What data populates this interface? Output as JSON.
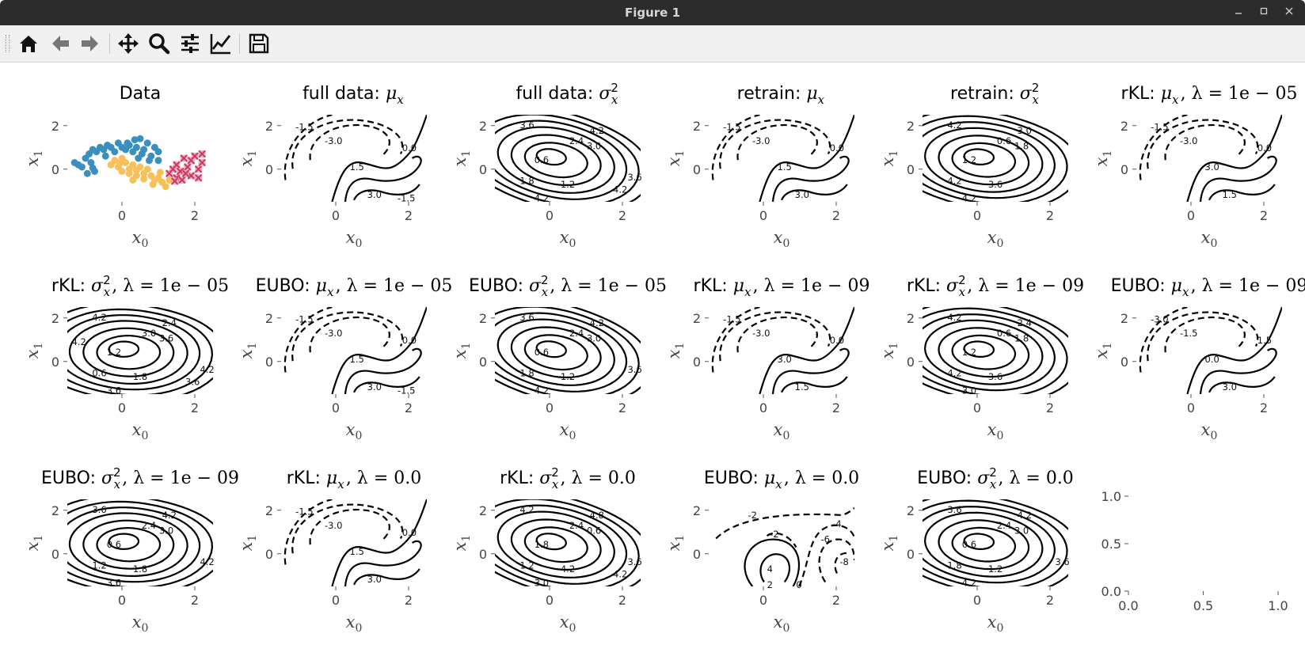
{
  "window": {
    "title": "Figure 1",
    "controls": [
      "minimize",
      "maximize",
      "close"
    ]
  },
  "toolbar": {
    "buttons": [
      {
        "name": "home-button",
        "icon": "home-icon"
      },
      {
        "name": "back-button",
        "icon": "arrow-left-icon"
      },
      {
        "name": "forward-button",
        "icon": "arrow-right-icon"
      },
      {
        "name": "pan-button",
        "icon": "move-icon"
      },
      {
        "name": "zoom-button",
        "icon": "magnifier-icon"
      },
      {
        "name": "configure-subplots-button",
        "icon": "sliders-icon"
      },
      {
        "name": "edit-axes-button",
        "icon": "line-chart-icon"
      },
      {
        "name": "save-button",
        "icon": "floppy-disk-icon"
      }
    ]
  },
  "chart_data": [
    {
      "type": "scatter",
      "title": "Data",
      "xlabel": "x_0",
      "ylabel": "x_1",
      "xticks": [
        "0",
        "2"
      ],
      "yticks": [
        "0",
        "2"
      ],
      "xlim": [
        -1.5,
        2.5
      ],
      "ylim": [
        -1.5,
        2.5
      ],
      "colors": {
        "class0": "#3b8fbf",
        "class1": "#f6c15a",
        "class2_fill": "#f0a0c0",
        "class2_edge": "#c83c5a"
      },
      "series": [
        {
          "marker": "circle",
          "points": [
            [
              -1.3,
              0.3
            ],
            [
              -1.2,
              0.2
            ],
            [
              -1.1,
              0.1
            ],
            [
              -1.0,
              0.5
            ],
            [
              -0.9,
              0.7
            ],
            [
              -0.85,
              0.3
            ],
            [
              -0.8,
              0.9
            ],
            [
              -0.75,
              -0.1
            ],
            [
              -0.7,
              0.8
            ],
            [
              -0.6,
              1.0
            ],
            [
              -0.5,
              0.9
            ],
            [
              -0.45,
              0.6
            ],
            [
              -0.4,
              1.1
            ],
            [
              -0.3,
              1.0
            ],
            [
              -0.2,
              0.8
            ],
            [
              -0.1,
              1.2
            ],
            [
              0.0,
              1.0
            ],
            [
              0.1,
              0.9
            ],
            [
              0.15,
              1.2
            ],
            [
              0.2,
              1.1
            ],
            [
              0.3,
              0.8
            ],
            [
              0.4,
              1.0
            ],
            [
              0.45,
              0.5
            ],
            [
              0.5,
              1.4
            ],
            [
              0.55,
              0.7
            ],
            [
              0.6,
              0.9
            ],
            [
              0.7,
              1.2
            ],
            [
              0.75,
              0.4
            ],
            [
              0.8,
              0.6
            ],
            [
              0.9,
              1.0
            ],
            [
              1.0,
              0.8
            ],
            [
              1.0,
              0.4
            ],
            [
              -0.95,
              -0.2
            ],
            [
              -0.8,
              0.05
            ],
            [
              0.35,
              1.35
            ]
          ]
        },
        {
          "marker": "circle",
          "points": [
            [
              -0.3,
              0.2
            ],
            [
              -0.2,
              0.4
            ],
            [
              -0.1,
              0.1
            ],
            [
              0.0,
              0.5
            ],
            [
              0.0,
              -0.1
            ],
            [
              0.1,
              0.3
            ],
            [
              0.2,
              -0.2
            ],
            [
              0.2,
              0.0
            ],
            [
              0.3,
              0.2
            ],
            [
              0.4,
              -0.3
            ],
            [
              0.4,
              -0.05
            ],
            [
              0.5,
              0.1
            ],
            [
              0.6,
              -0.2
            ],
            [
              0.6,
              -0.45
            ],
            [
              0.7,
              0.0
            ],
            [
              0.8,
              -0.3
            ],
            [
              0.9,
              -0.5
            ],
            [
              1.0,
              -0.4
            ],
            [
              1.1,
              -0.6
            ],
            [
              1.2,
              -0.8
            ],
            [
              1.3,
              -0.5
            ],
            [
              0.85,
              -0.7
            ],
            [
              0.3,
              -0.5
            ],
            [
              -0.05,
              0.3
            ],
            [
              1.05,
              -0.15
            ]
          ]
        },
        {
          "marker": "x",
          "points": [
            [
              1.3,
              -0.2
            ],
            [
              1.4,
              0.0
            ],
            [
              1.5,
              -0.4
            ],
            [
              1.5,
              0.2
            ],
            [
              1.6,
              -0.1
            ],
            [
              1.65,
              -0.5
            ],
            [
              1.7,
              0.5
            ],
            [
              1.8,
              0.1
            ],
            [
              1.9,
              -0.3
            ],
            [
              1.9,
              0.4
            ],
            [
              2.0,
              0.6
            ],
            [
              2.1,
              0.0
            ],
            [
              2.1,
              -0.4
            ],
            [
              2.2,
              0.3
            ],
            [
              2.2,
              0.7
            ],
            [
              1.45,
              -0.55
            ],
            [
              1.75,
              -0.2
            ]
          ]
        }
      ]
    },
    {
      "type": "contour",
      "title_main": "full data: ",
      "title_sym": "μ",
      "title_sub": "x",
      "title_sup": "",
      "title_rest": "",
      "xlabel": "x_0",
      "ylabel": "x_1",
      "xticks": [
        "0",
        "2"
      ],
      "yticks": [
        "0",
        "2"
      ],
      "levels": [
        "-1.5",
        "-3.0",
        "0.0",
        "1.5",
        "3.0",
        "-1.5"
      ]
    },
    {
      "type": "contour",
      "title_main": "full data: ",
      "title_sym": "σ",
      "title_sub": "x",
      "title_sup": "2",
      "title_rest": "",
      "xlabel": "x_0",
      "ylabel": "x_1",
      "xticks": [
        "0",
        "2"
      ],
      "yticks": [
        "0",
        "2"
      ],
      "levels": [
        "3.6",
        "4.2",
        "2.4",
        "3.0",
        "0.6",
        "1.8",
        "1.2",
        "4.2",
        "3.6",
        "4.2"
      ]
    },
    {
      "type": "contour",
      "title_main": "retrain: ",
      "title_sym": "μ",
      "title_sub": "x",
      "title_sup": "",
      "title_rest": "",
      "xlabel": "x_0",
      "ylabel": "x_1",
      "xticks": [
        "0",
        "2"
      ],
      "yticks": [
        "0",
        "2"
      ],
      "levels": [
        "-1.5",
        "-3.0",
        "0.0",
        "1.5",
        "3.0"
      ]
    },
    {
      "type": "contour",
      "title_main": "retrain: ",
      "title_sym": "σ",
      "title_sub": "x",
      "title_sup": "2",
      "title_rest": "",
      "xlabel": "x_0",
      "ylabel": "x_1",
      "xticks": [
        "0",
        "2"
      ],
      "yticks": [
        "0",
        "2"
      ],
      "levels": [
        "4.2",
        "3.0",
        "0.6",
        "1.8",
        "1.2",
        "4.2",
        "3.6",
        "4.2"
      ]
    },
    {
      "type": "contour",
      "title_main": "rKL: ",
      "title_sym": "μ",
      "title_sub": "x",
      "title_sup": "",
      "title_rest": ", λ = 1e − 05",
      "xlabel": "x_0",
      "ylabel": "x_1",
      "xticks": [
        "0",
        "2"
      ],
      "yticks": [
        "0",
        "2"
      ],
      "levels": [
        "-1.5",
        "-3.0",
        "0.0",
        "3.0",
        "1.5"
      ]
    },
    {
      "type": "contour",
      "title_main": "rKL: ",
      "title_sym": "σ",
      "title_sub": "x",
      "title_sup": "2",
      "title_rest": ", λ = 1e − 05",
      "xlabel": "x_0",
      "ylabel": "x_1",
      "xticks": [
        "0",
        "2"
      ],
      "yticks": [
        "0",
        "2"
      ],
      "levels": [
        "4.2",
        "2.4",
        "3.0",
        "3.6",
        "1.2",
        "0.6",
        "1.8",
        "3.6",
        "4.2",
        "3.6",
        "4.2"
      ]
    },
    {
      "type": "contour",
      "title_main": "EUBO: ",
      "title_sym": "μ",
      "title_sub": "x",
      "title_sup": "",
      "title_rest": ", λ = 1e − 05",
      "xlabel": "x_0",
      "ylabel": "x_1",
      "xticks": [
        "0",
        "2"
      ],
      "yticks": [
        "0",
        "2"
      ],
      "levels": [
        "-1.5",
        "-3.0",
        "0.0",
        "1.5",
        "3.0",
        "-1.5"
      ]
    },
    {
      "type": "contour",
      "title_main": "EUBO: ",
      "title_sym": "σ",
      "title_sub": "x",
      "title_sup": "2",
      "title_rest": ", λ = 1e − 05",
      "xlabel": "x_0",
      "ylabel": "x_1",
      "xticks": [
        "0",
        "2"
      ],
      "yticks": [
        "0",
        "2"
      ],
      "levels": [
        "3.6",
        "4.2",
        "2.4",
        "3.0",
        "0.6",
        "1.8",
        "1.2",
        "4.2",
        "3.6"
      ]
    },
    {
      "type": "contour",
      "title_main": "rKL: ",
      "title_sym": "μ",
      "title_sub": "x",
      "title_sup": "",
      "title_rest": ", λ = 1e − 09",
      "xlabel": "x_0",
      "ylabel": "x_1",
      "xticks": [
        "0",
        "2"
      ],
      "yticks": [
        "0",
        "2"
      ],
      "levels": [
        "-1.5",
        "-3.0",
        "0.0",
        "3.0",
        "1.5"
      ]
    },
    {
      "type": "contour",
      "title_main": "rKL: ",
      "title_sym": "σ",
      "title_sub": "x",
      "title_sup": "2",
      "title_rest": ", λ = 1e − 09",
      "xlabel": "x_0",
      "ylabel": "x_1",
      "xticks": [
        "0",
        "2"
      ],
      "yticks": [
        "0",
        "2"
      ],
      "levels": [
        "4.2",
        "2.4",
        "0.6",
        "1.8",
        "1.2",
        "4.2",
        "3.6",
        "3.0"
      ]
    },
    {
      "type": "contour",
      "title_main": "EUBO: ",
      "title_sym": "μ",
      "title_sub": "x",
      "title_sup": "",
      "title_rest": ", λ = 1e − 09",
      "xlabel": "x_0",
      "ylabel": "x_1",
      "xticks": [
        "0",
        "2"
      ],
      "yticks": [
        "0",
        "2"
      ],
      "levels": [
        "-3.0",
        "-1.5",
        "1.5",
        "0.0",
        "3.0"
      ]
    },
    {
      "type": "contour",
      "title_main": "EUBO: ",
      "title_sym": "σ",
      "title_sub": "x",
      "title_sup": "2",
      "title_rest": ", λ = 1e − 09",
      "xlabel": "x_0",
      "ylabel": "x_1",
      "xticks": [
        "0",
        "2"
      ],
      "yticks": [
        "0",
        "2"
      ],
      "levels": [
        "3.6",
        "4.2",
        "2.4",
        "3.0",
        "0.6",
        "1.2",
        "1.8",
        "3.6",
        "4.2"
      ]
    },
    {
      "type": "contour",
      "title_main": "rKL: ",
      "title_sym": "μ",
      "title_sub": "x",
      "title_sup": "",
      "title_rest": ", λ = 0.0",
      "xlabel": "x_0",
      "ylabel": "x_1",
      "xticks": [
        "0",
        "2"
      ],
      "yticks": [
        "0",
        "2"
      ],
      "levels": [
        "-1.5",
        "-3.0",
        "0.0",
        "1.5",
        "3.0"
      ]
    },
    {
      "type": "contour",
      "title_main": "rKL: ",
      "title_sym": "σ",
      "title_sub": "x",
      "title_sup": "2",
      "title_rest": ", λ = 0.0",
      "xlabel": "x_0",
      "ylabel": "x_1",
      "xticks": [
        "0",
        "2"
      ],
      "yticks": [
        "0",
        "2"
      ],
      "levels": [
        "4.2",
        "4.8",
        "2.4",
        "0.6",
        "1.8",
        "1.2",
        "4.2",
        "3.0",
        "3.6",
        "4.2"
      ]
    },
    {
      "type": "contour",
      "title_main": "EUBO: ",
      "title_sym": "μ",
      "title_sub": "x",
      "title_sup": "",
      "title_rest": ", λ = 0.0",
      "xlabel": "x_0",
      "ylabel": "x_1",
      "xticks": [
        "0",
        "2"
      ],
      "yticks": [
        "0",
        "2"
      ],
      "levels": [
        "-2",
        "-4",
        "-2",
        "-6",
        "-8",
        "4",
        "2",
        "0"
      ]
    },
    {
      "type": "contour",
      "title_main": "EUBO: ",
      "title_sym": "σ",
      "title_sub": "x",
      "title_sup": "2",
      "title_rest": ", λ = 0.0",
      "xlabel": "x_0",
      "ylabel": "x_1",
      "xticks": [
        "0",
        "2"
      ],
      "yticks": [
        "0",
        "2"
      ],
      "levels": [
        "3.6",
        "4.2",
        "2.4",
        "3.0",
        "0.6",
        "1.8",
        "1.2",
        "4.2",
        "3.6"
      ]
    },
    {
      "type": "empty",
      "xlim": [
        0.0,
        1.0
      ],
      "ylim": [
        0.0,
        1.0
      ],
      "xticks": [
        "0.0",
        "0.5",
        "1.0"
      ],
      "yticks": [
        "0.0",
        "0.5",
        "1.0"
      ]
    }
  ]
}
